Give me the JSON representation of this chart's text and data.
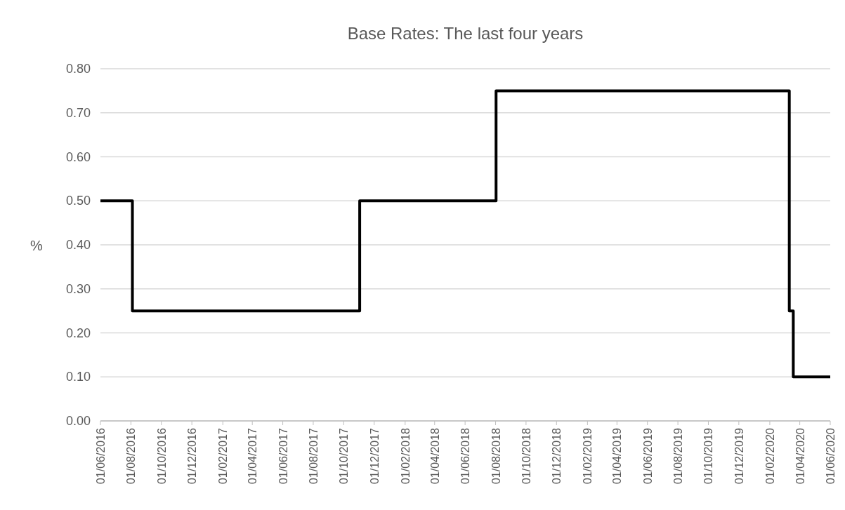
{
  "chart_data": {
    "type": "step",
    "title": "Base Rates: The last four years",
    "ylabel": "%",
    "x": [
      "2016-06-01",
      "2016-08-04",
      "2017-11-02",
      "2018-08-02",
      "2020-03-11",
      "2020-03-19",
      "2020-06-01"
    ],
    "series": [
      {
        "color": "#000000",
        "values": [
          0.5,
          0.25,
          0.5,
          0.75,
          0.25,
          0.1,
          0.1
        ]
      }
    ],
    "xlim": [
      "2016-06-01",
      "2020-06-01"
    ],
    "xticks": [
      {
        "value": "2016-06-01",
        "label": "01/06/2016"
      },
      {
        "value": "2016-08-01",
        "label": "01/08/2016"
      },
      {
        "value": "2016-10-01",
        "label": "01/10/2016"
      },
      {
        "value": "2016-12-01",
        "label": "01/12/2016"
      },
      {
        "value": "2017-02-01",
        "label": "01/02/2017"
      },
      {
        "value": "2017-04-01",
        "label": "01/04/2017"
      },
      {
        "value": "2017-06-01",
        "label": "01/06/2017"
      },
      {
        "value": "2017-08-01",
        "label": "01/08/2017"
      },
      {
        "value": "2017-10-01",
        "label": "01/10/2017"
      },
      {
        "value": "2017-12-01",
        "label": "01/12/2017"
      },
      {
        "value": "2018-02-01",
        "label": "01/02/2018"
      },
      {
        "value": "2018-04-01",
        "label": "01/04/2018"
      },
      {
        "value": "2018-06-01",
        "label": "01/06/2018"
      },
      {
        "value": "2018-08-01",
        "label": "01/08/2018"
      },
      {
        "value": "2018-10-01",
        "label": "01/10/2018"
      },
      {
        "value": "2018-12-01",
        "label": "01/12/2018"
      },
      {
        "value": "2019-02-01",
        "label": "01/02/2019"
      },
      {
        "value": "2019-04-01",
        "label": "01/04/2019"
      },
      {
        "value": "2019-06-01",
        "label": "01/06/2019"
      },
      {
        "value": "2019-08-01",
        "label": "01/08/2019"
      },
      {
        "value": "2019-10-01",
        "label": "01/10/2019"
      },
      {
        "value": "2019-12-01",
        "label": "01/12/2019"
      },
      {
        "value": "2020-02-01",
        "label": "01/02/2020"
      },
      {
        "value": "2020-04-01",
        "label": "01/04/2020"
      },
      {
        "value": "2020-06-01",
        "label": "01/06/2020"
      }
    ],
    "ylim": [
      0,
      0.8
    ],
    "yticks": [
      {
        "value": 0,
        "label": "0.00"
      },
      {
        "value": 0.1,
        "label": "0.10"
      },
      {
        "value": 0.2,
        "label": "0.20"
      },
      {
        "value": 0.3,
        "label": "0.30"
      },
      {
        "value": 0.4,
        "label": "0.40"
      },
      {
        "value": 0.5,
        "label": "0.50"
      },
      {
        "value": 0.6,
        "label": "0.60"
      },
      {
        "value": 0.7,
        "label": "0.70"
      },
      {
        "value": 0.8,
        "label": "0.80"
      }
    ],
    "grid": "y",
    "line_style": "solid",
    "marker": "none"
  }
}
